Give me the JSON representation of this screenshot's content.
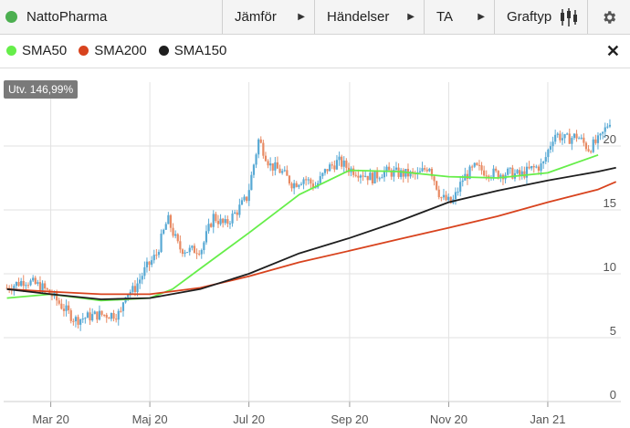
{
  "toolbar": {
    "title": "NattoPharma",
    "status_color": "#4caf50",
    "menus": {
      "compare": "Jämför",
      "events": "Händelser",
      "ta": "TA",
      "charttype": "Graftyp"
    },
    "icons": {
      "charttype": "candlestick-icon",
      "settings": "gear-icon",
      "arrow": "triangle-right-icon"
    }
  },
  "legend": {
    "items": [
      {
        "label": "SMA50",
        "color": "#66ee4a"
      },
      {
        "label": "SMA200",
        "color": "#d8431e"
      },
      {
        "label": "SMA150",
        "color": "#1e1e1e"
      }
    ],
    "close_glyph": "✕"
  },
  "badge": "Utv. 146,99%",
  "chart_data": {
    "type": "candlestick",
    "y_ticks": [
      0,
      5,
      10,
      15,
      20
    ],
    "ylim": [
      0,
      25
    ],
    "x_labels": [
      "Mar 20",
      "Maj 20",
      "Jul 20",
      "Sep 20",
      "Nov 20",
      "Jan 21"
    ],
    "colors": {
      "up": "#58a9d4",
      "down": "#e88a63"
    },
    "price_series": [
      {
        "t": "2020-02-03",
        "v": 8.9
      },
      {
        "t": "2020-02-14",
        "v": 9.5
      },
      {
        "t": "2020-02-24",
        "v": 9.0
      },
      {
        "t": "2020-03-02",
        "v": 8.3
      },
      {
        "t": "2020-03-09",
        "v": 7.3
      },
      {
        "t": "2020-03-16",
        "v": 6.4
      },
      {
        "t": "2020-03-23",
        "v": 6.6
      },
      {
        "t": "2020-03-30",
        "v": 6.8
      },
      {
        "t": "2020-04-06",
        "v": 6.8
      },
      {
        "t": "2020-04-14",
        "v": 6.9
      },
      {
        "t": "2020-04-15",
        "v": 8.5
      },
      {
        "t": "2020-04-21",
        "v": 8.7
      },
      {
        "t": "2020-04-28",
        "v": 10.3
      },
      {
        "t": "2020-05-05",
        "v": 11.5
      },
      {
        "t": "2020-05-12",
        "v": 14.3
      },
      {
        "t": "2020-05-19",
        "v": 12.0
      },
      {
        "t": "2020-05-26",
        "v": 11.8
      },
      {
        "t": "2020-06-02",
        "v": 12.0
      },
      {
        "t": "2020-06-09",
        "v": 14.5
      },
      {
        "t": "2020-06-16",
        "v": 13.8
      },
      {
        "t": "2020-06-23",
        "v": 14.8
      },
      {
        "t": "2020-06-30",
        "v": 16.0
      },
      {
        "t": "2020-07-07",
        "v": 20.5
      },
      {
        "t": "2020-07-14",
        "v": 18.5
      },
      {
        "t": "2020-07-21",
        "v": 18.0
      },
      {
        "t": "2020-07-28",
        "v": 17.0
      },
      {
        "t": "2020-08-04",
        "v": 17.5
      },
      {
        "t": "2020-08-11",
        "v": 16.8
      },
      {
        "t": "2020-08-18",
        "v": 18.2
      },
      {
        "t": "2020-08-25",
        "v": 18.8
      },
      {
        "t": "2020-09-01",
        "v": 18.2
      },
      {
        "t": "2020-09-08",
        "v": 17.9
      },
      {
        "t": "2020-09-15",
        "v": 17.5
      },
      {
        "t": "2020-09-22",
        "v": 18.0
      },
      {
        "t": "2020-09-29",
        "v": 17.9
      },
      {
        "t": "2020-10-06",
        "v": 17.8
      },
      {
        "t": "2020-10-13",
        "v": 17.7
      },
      {
        "t": "2020-10-20",
        "v": 18.5
      },
      {
        "t": "2020-10-27",
        "v": 16.0
      },
      {
        "t": "2020-11-03",
        "v": 15.5
      },
      {
        "t": "2020-11-10",
        "v": 17.5
      },
      {
        "t": "2020-11-17",
        "v": 18.3
      },
      {
        "t": "2020-11-24",
        "v": 18.0
      },
      {
        "t": "2020-12-01",
        "v": 17.8
      },
      {
        "t": "2020-12-08",
        "v": 17.9
      },
      {
        "t": "2020-12-15",
        "v": 17.7
      },
      {
        "t": "2020-12-22",
        "v": 18.2
      },
      {
        "t": "2020-12-29",
        "v": 18.5
      },
      {
        "t": "2021-01-05",
        "v": 21.0
      },
      {
        "t": "2021-01-12",
        "v": 20.5
      },
      {
        "t": "2021-01-19",
        "v": 20.8
      },
      {
        "t": "2021-01-26",
        "v": 19.8
      },
      {
        "t": "2021-02-02",
        "v": 20.5
      },
      {
        "t": "2021-02-09",
        "v": 22.2
      }
    ],
    "series": [
      {
        "name": "SMA50",
        "color": "#66ee4a",
        "points": [
          {
            "t": "2020-02-03",
            "v": 8.1
          },
          {
            "t": "2020-03-01",
            "v": 8.4
          },
          {
            "t": "2020-04-01",
            "v": 7.9
          },
          {
            "t": "2020-05-01",
            "v": 8.1
          },
          {
            "t": "2020-05-15",
            "v": 8.8
          },
          {
            "t": "2020-06-01",
            "v": 10.4
          },
          {
            "t": "2020-07-01",
            "v": 13.2
          },
          {
            "t": "2020-08-01",
            "v": 16.2
          },
          {
            "t": "2020-09-01",
            "v": 18.1
          },
          {
            "t": "2020-10-01",
            "v": 18.0
          },
          {
            "t": "2020-11-01",
            "v": 17.6
          },
          {
            "t": "2020-12-01",
            "v": 17.5
          },
          {
            "t": "2021-01-01",
            "v": 17.9
          },
          {
            "t": "2021-02-01",
            "v": 19.3
          }
        ]
      },
      {
        "name": "SMA200",
        "color": "#d8431e",
        "points": [
          {
            "t": "2020-02-03",
            "v": 8.8
          },
          {
            "t": "2020-03-01",
            "v": 8.6
          },
          {
            "t": "2020-04-01",
            "v": 8.4
          },
          {
            "t": "2020-05-01",
            "v": 8.4
          },
          {
            "t": "2020-06-01",
            "v": 8.9
          },
          {
            "t": "2020-07-01",
            "v": 9.8
          },
          {
            "t": "2020-08-01",
            "v": 10.9
          },
          {
            "t": "2020-09-01",
            "v": 11.8
          },
          {
            "t": "2020-10-01",
            "v": 12.7
          },
          {
            "t": "2020-11-01",
            "v": 13.6
          },
          {
            "t": "2020-12-01",
            "v": 14.5
          },
          {
            "t": "2021-01-01",
            "v": 15.6
          },
          {
            "t": "2021-02-01",
            "v": 16.6
          },
          {
            "t": "2021-02-12",
            "v": 17.2
          }
        ]
      },
      {
        "name": "SMA150",
        "color": "#1e1e1e",
        "points": [
          {
            "t": "2020-02-03",
            "v": 8.8
          },
          {
            "t": "2020-03-01",
            "v": 8.4
          },
          {
            "t": "2020-04-01",
            "v": 8.0
          },
          {
            "t": "2020-05-01",
            "v": 8.1
          },
          {
            "t": "2020-06-01",
            "v": 8.8
          },
          {
            "t": "2020-07-01",
            "v": 10.0
          },
          {
            "t": "2020-08-01",
            "v": 11.6
          },
          {
            "t": "2020-09-01",
            "v": 12.8
          },
          {
            "t": "2020-10-01",
            "v": 14.1
          },
          {
            "t": "2020-11-01",
            "v": 15.6
          },
          {
            "t": "2020-12-01",
            "v": 16.5
          },
          {
            "t": "2021-01-01",
            "v": 17.3
          },
          {
            "t": "2021-02-01",
            "v": 18.0
          },
          {
            "t": "2021-02-12",
            "v": 18.3
          }
        ]
      }
    ]
  }
}
